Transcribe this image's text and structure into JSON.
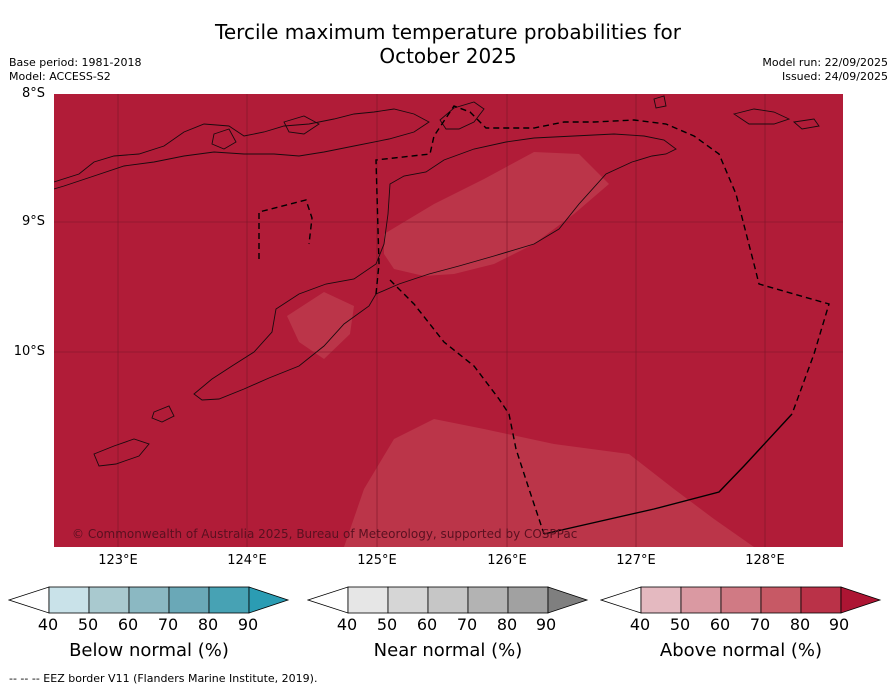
{
  "title_line1": "Tercile maximum temperature probabilities for",
  "title_line2": "October 2025",
  "base_period": "Base period: 1981-2018",
  "model": "Model: ACCESS-S2",
  "model_run": "Model run: 22/09/2025",
  "issued": "Issued: 24/09/2025",
  "lat_labels": [
    "8°S",
    "9°S",
    "10°S"
  ],
  "lon_labels": [
    "123°E",
    "124°E",
    "125°E",
    "126°E",
    "127°E",
    "128°E"
  ],
  "copyright": "© Commonwealth of Australia 2025, Bureau of Meteorology, supported by COSPPac",
  "colorbars": [
    {
      "label": "Below normal (%)",
      "ticks": [
        "40",
        "50",
        "60",
        "70",
        "80",
        "90"
      ],
      "colors": [
        "#ffffff",
        "#c9e2e9",
        "#a9c9cf",
        "#8bb8c2",
        "#6aa8b7",
        "#47a2b4",
        "#2b9cb3"
      ]
    },
    {
      "label": "Near normal (%)",
      "ticks": [
        "40",
        "50",
        "60",
        "70",
        "80",
        "90"
      ],
      "colors": [
        "#ffffff",
        "#e6e6e6",
        "#d6d6d6",
        "#c6c6c6",
        "#b3b3b3",
        "#a1a1a1",
        "#7f7f7f"
      ]
    },
    {
      "label": "Above normal (%)",
      "ticks": [
        "40",
        "50",
        "60",
        "70",
        "80",
        "90"
      ],
      "colors": [
        "#ffffff",
        "#e4b9c0",
        "#da99a2",
        "#d07a84",
        "#c75965",
        "#ba3248",
        "#ad1533"
      ]
    }
  ],
  "map_colors": {
    "base": "#b11c38",
    "lighter": "#bb3549"
  },
  "footnote": "--  --  -- EEZ border V11 (Flanders Marine Institute, 2019)."
}
